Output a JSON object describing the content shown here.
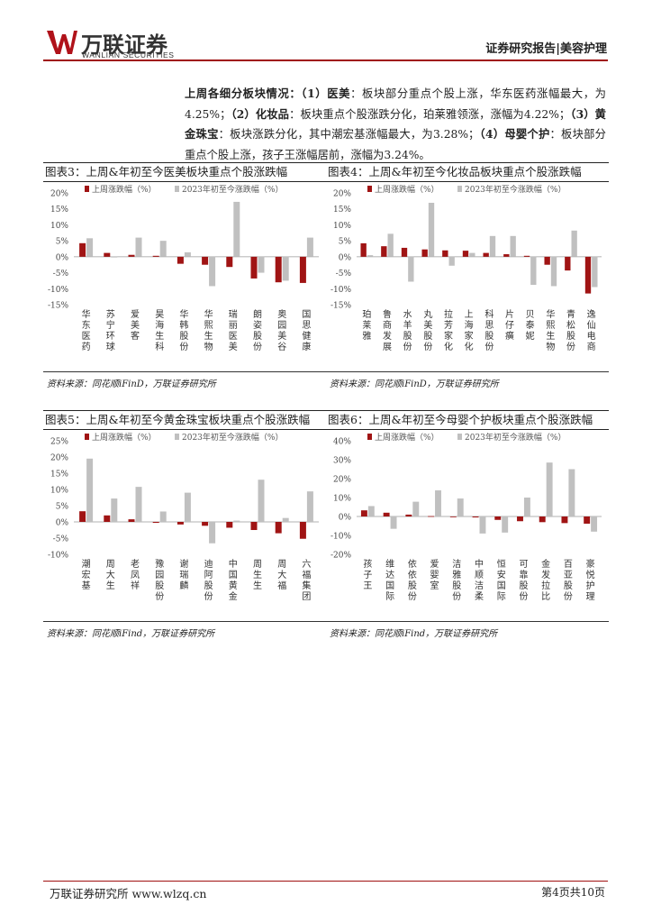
{
  "header": {
    "logo_cn": "万联证券",
    "logo_en": "WANLIAN SECURITIES",
    "right_text": "证券研究报告|美容护理"
  },
  "paragraph": {
    "lead": "上周各细分板块情况：",
    "s1_label": "（1）医美",
    "s1_text": "：板块部分重点个股上涨，华东医药涨幅最大，为4.25%；",
    "s2_label": "（2）化妆品",
    "s2_text": "：板块重点个股涨跌分化，珀莱雅领涨，涨幅为4.22%；",
    "s3_label": "（3）黄金珠宝",
    "s3_text": "：板块涨跌分化，其中潮宏基涨幅最大，为3.28%；",
    "s4_label": "（4）母婴个护",
    "s4_text": "：板块部分重点个股上涨，孩子王涨幅居前，涨幅为3.24%。"
  },
  "charts": [
    {
      "title": "图表3：上周&年初至今医美板块重点个股涨跌幅",
      "source": "资料来源：同花顺iFinD，万联证券研究所",
      "legend": [
        "上周涨跌幅（%）",
        "2023年初至今涨跌幅（%）"
      ],
      "colors": [
        "#a01414",
        "#c0c0c0"
      ],
      "chart_data": {
        "type": "bar",
        "categories": [
          "华东医药",
          "苏宁环球",
          "爱美客",
          "昊海生科",
          "华韩股份",
          "华熙生物",
          "瑞丽医美",
          "朗姿股份",
          "奥园美谷",
          "国思健康"
        ],
        "series": [
          {
            "name": "上周涨跌幅（%）",
            "values": [
              4.25,
              1.2,
              0.6,
              0.3,
              -2.2,
              -2.5,
              -3.2,
              -6.8,
              -8.0,
              -8.2
            ]
          },
          {
            "name": "2023年初至今涨跌幅（%）",
            "values": [
              5.8,
              0.0,
              6.0,
              5.0,
              1.4,
              -9.2,
              17.2,
              -5.0,
              -7.5,
              6.0
            ]
          }
        ],
        "yticks": [
          "20%",
          "15%",
          "10%",
          "5%",
          "0%",
          "-5%",
          "-10%",
          "-15%"
        ],
        "ylim": [
          -15,
          20
        ]
      }
    },
    {
      "title": "图表4：上周&年初至今化妆品板块重点个股涨跌幅",
      "source": "资料来源：同花顺iFinD，万联证券研究所",
      "legend": [
        "上周涨跌幅（%）",
        "2023年初至今涨跌幅（%）"
      ],
      "colors": [
        "#a01414",
        "#c0c0c0"
      ],
      "chart_data": {
        "type": "bar",
        "categories": [
          "珀莱雅",
          "鲁商发展",
          "水羊股份",
          "丸美股份",
          "拉芳家化",
          "上海家化",
          "科思股份",
          "片仔癀",
          "贝泰妮",
          "华熙生物",
          "青松股份",
          "逸仙电商"
        ],
        "series": [
          {
            "name": "上周涨跌幅（%）",
            "values": [
              4.22,
              3.3,
              2.8,
              2.3,
              2.0,
              1.9,
              1.2,
              0.8,
              0.3,
              -2.5,
              -4.3,
              -11.5
            ]
          },
          {
            "name": "2023年初至今涨跌幅（%）",
            "values": [
              0.5,
              7.2,
              -7.8,
              16.9,
              -2.8,
              1.2,
              6.5,
              6.5,
              -8.8,
              -9.2,
              8.2,
              -9.5
            ]
          }
        ],
        "yticks": [
          "20%",
          "15%",
          "10%",
          "5%",
          "0%",
          "-5%",
          "-10%",
          "-15%"
        ],
        "ylim": [
          -15,
          20
        ]
      }
    },
    {
      "title": "图表5：上周&年初至今黄金珠宝板块重点个股涨跌幅",
      "source": "资料来源：同花顺iFind，万联证券研究所",
      "legend": [
        "上周涨跌幅（%）",
        "2023年初至今涨跌幅（%）"
      ],
      "colors": [
        "#a01414",
        "#c0c0c0"
      ],
      "chart_data": {
        "type": "bar",
        "categories": [
          "潮宏基",
          "周大生",
          "老凤祥",
          "豫园股份",
          "谢瑞麟",
          "迪阿股份",
          "中国黄金",
          "周生生",
          "周大福",
          "六福集团"
        ],
        "series": [
          {
            "name": "上周涨跌幅（%）",
            "values": [
              3.28,
              2.0,
              0.8,
              -0.3,
              -0.8,
              -1.2,
              -1.8,
              -2.5,
              -3.5,
              -5.2
            ]
          },
          {
            "name": "2023年初至今涨跌幅（%）",
            "values": [
              19.5,
              7.2,
              10.8,
              3.2,
              9.0,
              -6.6,
              0.4,
              13.0,
              1.2,
              9.4
            ]
          }
        ],
        "yticks": [
          "25%",
          "20%",
          "15%",
          "10%",
          "5%",
          "0%",
          "-5%",
          "-10%"
        ],
        "ylim": [
          -10,
          25
        ]
      }
    },
    {
      "title": "图表6：上周&年初至今母婴个护板块重点个股涨跌幅",
      "source": "资料来源：同花顺iFind，万联证券研究所",
      "legend": [
        "上周涨跌幅（%）",
        "2023年初至今涨跌幅（%）"
      ],
      "colors": [
        "#a01414",
        "#c0c0c0"
      ],
      "chart_data": {
        "type": "bar",
        "categories": [
          "孩子王",
          "维达国际",
          "依依股份",
          "爱婴室",
          "洁雅股份",
          "中顺洁柔",
          "恒安国际",
          "可靠股份",
          "金发拉比",
          "百亚股份",
          "豪悦护理"
        ],
        "series": [
          {
            "name": "上周涨跌幅（%）",
            "values": [
              3.24,
              2.0,
              1.0,
              0.2,
              0.0,
              -0.5,
              -1.8,
              -2.5,
              -3.0,
              -3.5,
              -3.8
            ]
          },
          {
            "name": "2023年初至今涨跌幅（%）",
            "values": [
              5.5,
              -6.5,
              7.8,
              13.8,
              9.5,
              -9.0,
              -8.5,
              10.0,
              28.5,
              25.0,
              -8.0
            ]
          }
        ],
        "yticks": [
          "40%",
          "30%",
          "20%",
          "10%",
          "0%",
          "-10%",
          "-20%"
        ],
        "ylim": [
          -20,
          40
        ]
      }
    }
  ],
  "footer": {
    "left": "万联证券研究所 www.wlzq.cn",
    "right": "第4页共10页"
  }
}
